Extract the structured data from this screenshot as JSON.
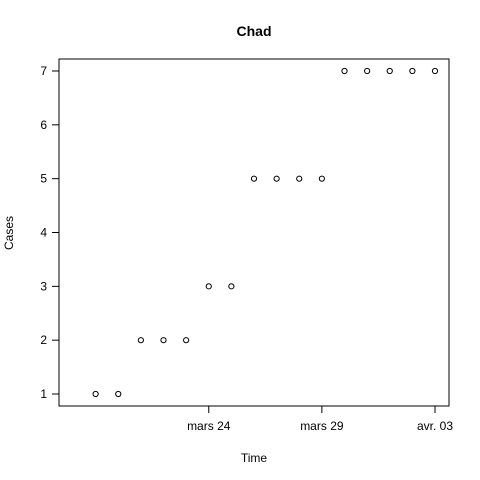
{
  "chart_data": {
    "type": "scatter",
    "title": "Chad",
    "xlabel": "Time",
    "ylabel": "Cases",
    "x_axis_type": "date",
    "x": [
      "2020-03-19",
      "2020-03-20",
      "2020-03-21",
      "2020-03-22",
      "2020-03-23",
      "2020-03-24",
      "2020-03-25",
      "2020-03-26",
      "2020-03-27",
      "2020-03-28",
      "2020-03-29",
      "2020-03-30",
      "2020-03-31",
      "2020-04-01",
      "2020-04-02",
      "2020-04-03"
    ],
    "y": [
      1,
      1,
      2,
      2,
      2,
      3,
      3,
      5,
      5,
      5,
      5,
      7,
      7,
      7,
      7,
      7
    ],
    "xlim": [
      "2020-03-18",
      "2020-04-03"
    ],
    "ylim": [
      1,
      7
    ],
    "x_ticks": [
      {
        "date": "2020-03-24",
        "label": "mars 24"
      },
      {
        "date": "2020-03-29",
        "label": "mars 29"
      },
      {
        "date": "2020-04-03",
        "label": "avr. 03"
      }
    ],
    "y_ticks": [
      1,
      2,
      3,
      4,
      5,
      6,
      7
    ],
    "marker": "open-circle",
    "grid": false,
    "legend": "none",
    "colors": {
      "points": "#000000",
      "axes": "#000000",
      "background": "#ffffff"
    }
  }
}
